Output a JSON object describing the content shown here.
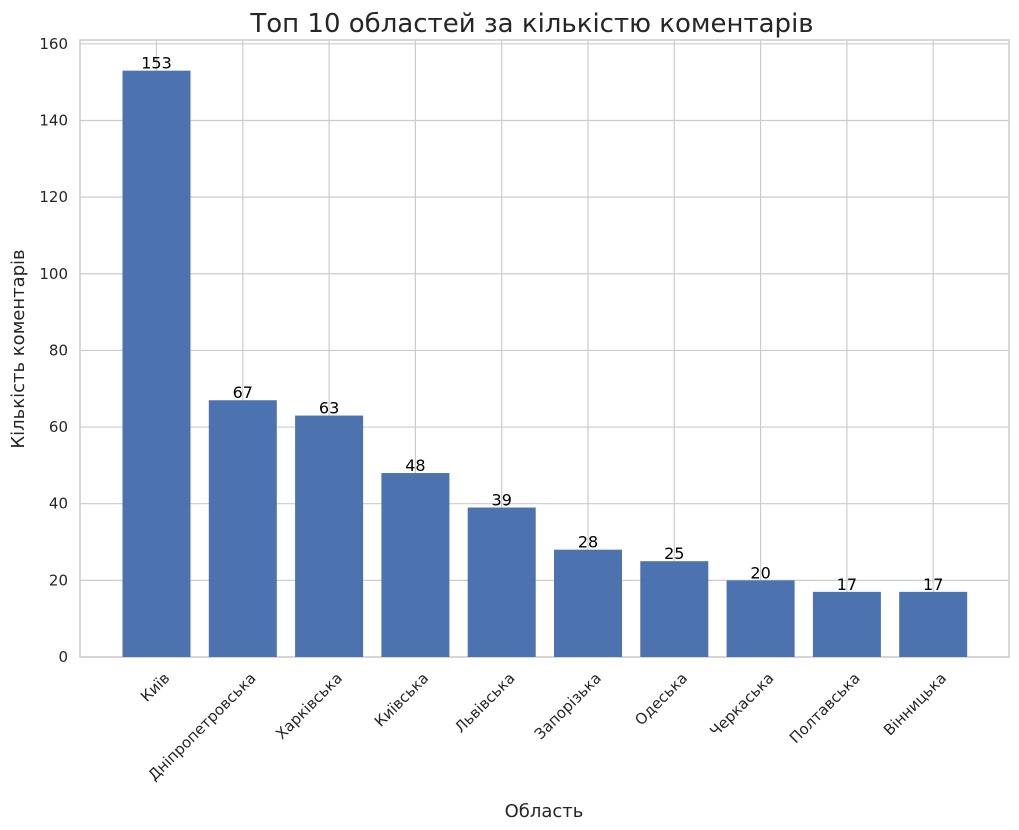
{
  "chart_data": {
    "type": "bar",
    "title": "Топ 10 областей за кількістю коментарів",
    "xlabel": "Область",
    "ylabel": "Кількість коментарів",
    "categories": [
      "Київ",
      "Дніпропетровська",
      "Харківська",
      "Київська",
      "Львівська",
      "Запорізька",
      "Одеська",
      "Черкаська",
      "Полтавська",
      "Вінницька"
    ],
    "values": [
      153,
      67,
      63,
      48,
      39,
      28,
      25,
      20,
      17,
      17
    ],
    "ylim": [
      0,
      161
    ],
    "yticks": [
      0,
      20,
      40,
      60,
      80,
      100,
      120,
      140,
      160
    ],
    "grid": true,
    "bar_color": "#4c72b0",
    "grid_color": "#cccccc",
    "data_labels": true
  }
}
